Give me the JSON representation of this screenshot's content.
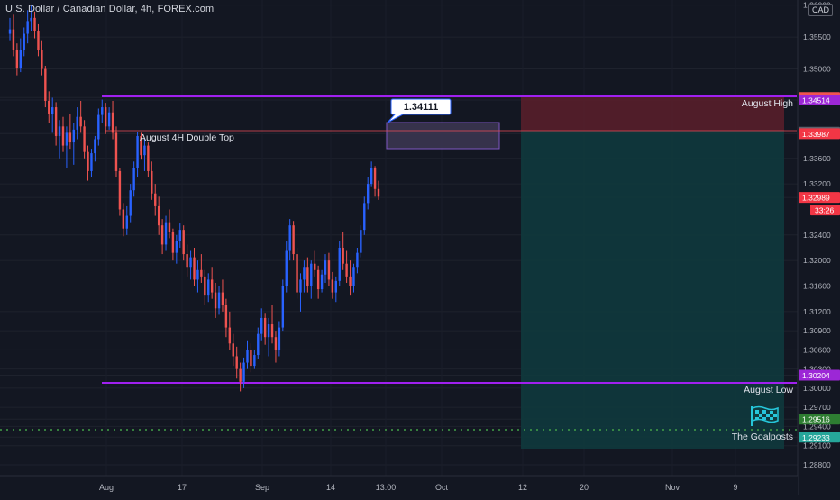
{
  "symbol": {
    "title": "U.S. Dollar / Canadian Dollar, 4h, FOREX.com",
    "currency": "CAD"
  },
  "chart_data": {
    "type": "candlestick",
    "y_axis": {
      "ylim": [
        1.2863,
        1.3608
      ],
      "ticks": [
        "1.36000",
        "1.35500",
        "1.35000",
        "1.34553",
        "1.34514",
        "1.34010",
        "1.33987",
        "1.33600",
        "1.33200",
        "1.32989",
        "1.32400",
        "1.32000",
        "1.31600",
        "1.31200",
        "1.30900",
        "1.30600",
        "1.30300",
        "1.30204",
        "1.30000",
        "1.29700",
        "1.29516",
        "1.29400",
        "1.29233",
        "1.29100",
        "1.28800"
      ],
      "countdown": "33:26"
    },
    "x_axis": {
      "ticks": [
        "Aug",
        "17",
        "Sep",
        "14",
        "13:00",
        "Oct",
        "12",
        "20",
        "Nov",
        "9"
      ]
    },
    "price_badges": [
      {
        "value": 1.34553,
        "label": "1.34553",
        "color": "#ef5350"
      },
      {
        "value": 1.34514,
        "label": "1.34514",
        "color": "#9c27d6"
      },
      {
        "value": 1.3401,
        "label": "1.34010",
        "color": "#5d606b"
      },
      {
        "value": 1.33987,
        "label": "1.33987",
        "color": "#f23645"
      },
      {
        "value": 1.32989,
        "label": "1.32989",
        "color": "#f23645"
      },
      {
        "value": 1.30204,
        "label": "1.30204",
        "color": "#9c27d6"
      },
      {
        "value": 1.29516,
        "label": "1.29516",
        "color": "#2e7d32"
      },
      {
        "value": 1.29233,
        "label": "1.29233",
        "color": "#26a69a"
      }
    ],
    "horizontal_lines": [
      {
        "value": 1.34514,
        "color": "#a020f0"
      },
      {
        "value": 1.30204,
        "color": "#a020f0"
      }
    ],
    "annotations": {
      "double_top": "August 4H Double Top",
      "callout": "1.34111",
      "august_high": "August High",
      "august_low": "August Low",
      "goalposts": "The Goalposts"
    },
    "position": {
      "entry": 1.3401,
      "stop": 1.34553,
      "target": 1.29233
    },
    "series": [
      {
        "values": [
          [
            1.3555,
            1.358,
            1.3545,
            1.3562
          ],
          [
            1.3562,
            1.3585,
            1.352,
            1.353
          ],
          [
            1.353,
            1.354,
            1.349,
            1.3502
          ],
          [
            1.3502,
            1.3548,
            1.3495,
            1.353
          ],
          [
            1.353,
            1.3565,
            1.352,
            1.3555
          ],
          [
            1.3555,
            1.3592,
            1.354,
            1.3575
          ],
          [
            1.3575,
            1.36,
            1.356,
            1.358
          ],
          [
            1.358,
            1.359,
            1.3548,
            1.356
          ],
          [
            1.356,
            1.357,
            1.352,
            1.353
          ],
          [
            1.353,
            1.3545,
            1.349,
            1.35
          ],
          [
            1.35,
            1.3505,
            1.344,
            1.345
          ],
          [
            1.345,
            1.3465,
            1.3415,
            1.343
          ],
          [
            1.343,
            1.3455,
            1.34,
            1.344
          ],
          [
            1.344,
            1.3448,
            1.338,
            1.3395
          ],
          [
            1.3395,
            1.342,
            1.336,
            1.341
          ],
          [
            1.341,
            1.3425,
            1.337,
            1.338
          ],
          [
            1.338,
            1.341,
            1.3345,
            1.34
          ],
          [
            1.34,
            1.343,
            1.3375,
            1.3385
          ],
          [
            1.3385,
            1.3415,
            1.335,
            1.3405
          ],
          [
            1.3405,
            1.344,
            1.339,
            1.3425
          ],
          [
            1.3425,
            1.345,
            1.34,
            1.341
          ],
          [
            1.341,
            1.342,
            1.336,
            1.337
          ],
          [
            1.337,
            1.338,
            1.3325,
            1.334
          ],
          [
            1.334,
            1.3375,
            1.333,
            1.3368
          ],
          [
            1.3368,
            1.3395,
            1.3355,
            1.339
          ],
          [
            1.339,
            1.3438,
            1.338,
            1.3428
          ],
          [
            1.3428,
            1.3452,
            1.3415,
            1.344
          ],
          [
            1.344,
            1.3447,
            1.3398,
            1.341
          ],
          [
            1.341,
            1.344,
            1.3405,
            1.3432
          ],
          [
            1.3432,
            1.345,
            1.339,
            1.34
          ],
          [
            1.34,
            1.341,
            1.333,
            1.334
          ],
          [
            1.334,
            1.3345,
            1.327,
            1.328
          ],
          [
            1.328,
            1.329,
            1.3238,
            1.325
          ],
          [
            1.325,
            1.3285,
            1.324,
            1.327
          ],
          [
            1.327,
            1.332,
            1.326,
            1.331
          ],
          [
            1.331,
            1.3355,
            1.33,
            1.3345
          ],
          [
            1.3345,
            1.3402,
            1.333,
            1.3395
          ],
          [
            1.3395,
            1.34,
            1.3358,
            1.3365
          ],
          [
            1.3365,
            1.339,
            1.334,
            1.338
          ],
          [
            1.338,
            1.3385,
            1.333,
            1.334
          ],
          [
            1.334,
            1.3355,
            1.3295,
            1.3305
          ],
          [
            1.3305,
            1.332,
            1.327,
            1.3285
          ],
          [
            1.3285,
            1.33,
            1.324,
            1.3255
          ],
          [
            1.3255,
            1.3265,
            1.321,
            1.3225
          ],
          [
            1.3225,
            1.327,
            1.3215,
            1.326
          ],
          [
            1.326,
            1.328,
            1.3235,
            1.3245
          ],
          [
            1.3245,
            1.325,
            1.32,
            1.3212
          ],
          [
            1.3212,
            1.324,
            1.3195,
            1.323
          ],
          [
            1.323,
            1.3258,
            1.322,
            1.3248
          ],
          [
            1.3248,
            1.3255,
            1.32,
            1.321
          ],
          [
            1.321,
            1.3225,
            1.3175,
            1.319
          ],
          [
            1.319,
            1.3215,
            1.317,
            1.3205
          ],
          [
            1.3205,
            1.322,
            1.316,
            1.317
          ],
          [
            1.317,
            1.32,
            1.315,
            1.3185
          ],
          [
            1.3185,
            1.321,
            1.3165,
            1.3175
          ],
          [
            1.3175,
            1.3185,
            1.313,
            1.3145
          ],
          [
            1.3145,
            1.318,
            1.3135,
            1.317
          ],
          [
            1.317,
            1.319,
            1.314,
            1.315
          ],
          [
            1.315,
            1.3165,
            1.311,
            1.3125
          ],
          [
            1.3125,
            1.316,
            1.3115,
            1.315
          ],
          [
            1.315,
            1.317,
            1.312,
            1.313
          ],
          [
            1.313,
            1.314,
            1.308,
            1.3095
          ],
          [
            1.3095,
            1.312,
            1.306,
            1.307
          ],
          [
            1.307,
            1.3085,
            1.3035,
            1.305
          ],
          [
            1.305,
            1.3065,
            1.3015,
            1.303
          ],
          [
            1.303,
            1.304,
            1.2995,
            1.301
          ],
          [
            1.301,
            1.3048,
            1.3,
            1.304
          ],
          [
            1.304,
            1.3075,
            1.303,
            1.306
          ],
          [
            1.306,
            1.307,
            1.3025,
            1.3035
          ],
          [
            1.3035,
            1.306,
            1.303,
            1.3052
          ],
          [
            1.3052,
            1.3095,
            1.3045,
            1.3085
          ],
          [
            1.3085,
            1.3125,
            1.3075,
            1.311
          ],
          [
            1.311,
            1.3118,
            1.3068,
            1.308
          ],
          [
            1.308,
            1.311,
            1.305,
            1.31
          ],
          [
            1.31,
            1.313,
            1.307,
            1.308
          ],
          [
            1.308,
            1.309,
            1.304,
            1.306
          ],
          [
            1.306,
            1.3105,
            1.305,
            1.3095
          ],
          [
            1.3095,
            1.317,
            1.309,
            1.316
          ],
          [
            1.316,
            1.323,
            1.315,
            1.3215
          ],
          [
            1.3215,
            1.3265,
            1.32,
            1.3255
          ],
          [
            1.3255,
            1.3262,
            1.32,
            1.321
          ],
          [
            1.321,
            1.322,
            1.314,
            1.315
          ],
          [
            1.315,
            1.318,
            1.312,
            1.317
          ],
          [
            1.317,
            1.32,
            1.315,
            1.319
          ],
          [
            1.319,
            1.3205,
            1.315,
            1.316
          ],
          [
            1.316,
            1.32,
            1.314,
            1.3195
          ],
          [
            1.3195,
            1.3215,
            1.3175,
            1.3185
          ],
          [
            1.3185,
            1.3192,
            1.314,
            1.3155
          ],
          [
            1.3155,
            1.3185,
            1.315,
            1.3178
          ],
          [
            1.3178,
            1.321,
            1.3165,
            1.32
          ],
          [
            1.32,
            1.3212,
            1.316,
            1.317
          ],
          [
            1.317,
            1.3182,
            1.314,
            1.315
          ],
          [
            1.315,
            1.3175,
            1.3135,
            1.3168
          ],
          [
            1.3168,
            1.323,
            1.316,
            1.322
          ],
          [
            1.322,
            1.3245,
            1.3185,
            1.3195
          ],
          [
            1.3195,
            1.3215,
            1.3165,
            1.3175
          ],
          [
            1.3175,
            1.32,
            1.3145,
            1.316
          ],
          [
            1.316,
            1.3195,
            1.315,
            1.319
          ],
          [
            1.319,
            1.322,
            1.318,
            1.3212
          ],
          [
            1.3212,
            1.3255,
            1.3205,
            1.3248
          ],
          [
            1.3248,
            1.33,
            1.324,
            1.329
          ],
          [
            1.329,
            1.333,
            1.328,
            1.332
          ],
          [
            1.332,
            1.3355,
            1.3315,
            1.3345
          ],
          [
            1.3345,
            1.3348,
            1.33,
            1.3312
          ],
          [
            1.3312,
            1.3325,
            1.3295,
            1.33
          ]
        ]
      }
    ]
  }
}
